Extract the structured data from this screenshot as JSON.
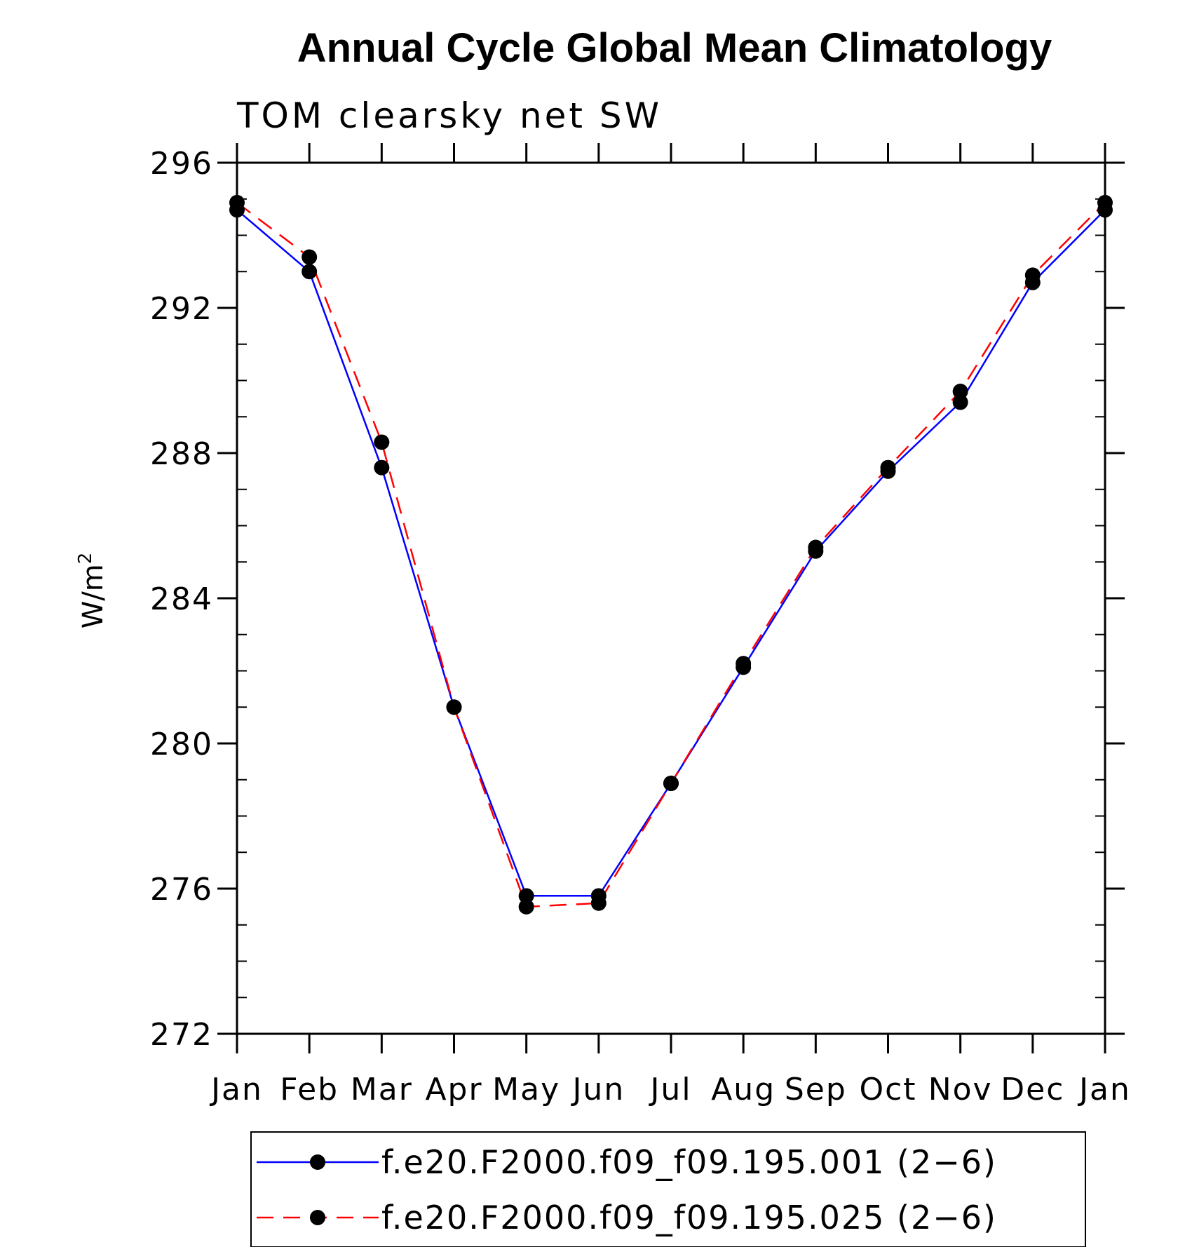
{
  "chart_data": {
    "type": "line",
    "title": "Annual Cycle Global Mean Climatology",
    "subtitle": "TOM clearsky net SW",
    "ylabel": "W/m",
    "ylabel_superscript": "2",
    "xlabel": "",
    "categories": [
      "Jan",
      "Feb",
      "Mar",
      "Apr",
      "May",
      "Jun",
      "Jul",
      "Aug",
      "Sep",
      "Oct",
      "Nov",
      "Dec",
      "Jan"
    ],
    "ylim": [
      272,
      296
    ],
    "yticks": [
      "296",
      "292",
      "288",
      "284",
      "280",
      "276",
      "272"
    ],
    "grid": false,
    "legend_position": "bottom",
    "series": [
      {
        "name": "f.e20.F2000.f09_f09.195.001 (2−6)",
        "color": "#0000ff",
        "line_style": "solid",
        "marker": "filled-circle",
        "values": [
          294.7,
          293.0,
          287.6,
          281.0,
          275.8,
          275.8,
          278.9,
          282.1,
          285.3,
          287.5,
          289.4,
          292.7,
          294.7
        ]
      },
      {
        "name": "f.e20.F2000.f09_f09.195.025 (2−6)",
        "color": "#ff0000",
        "line_style": "dashed",
        "marker": "filled-circle",
        "values": [
          294.9,
          293.4,
          288.3,
          281.0,
          275.5,
          275.6,
          278.9,
          282.2,
          285.4,
          287.6,
          289.7,
          292.9,
          294.9
        ]
      }
    ]
  }
}
